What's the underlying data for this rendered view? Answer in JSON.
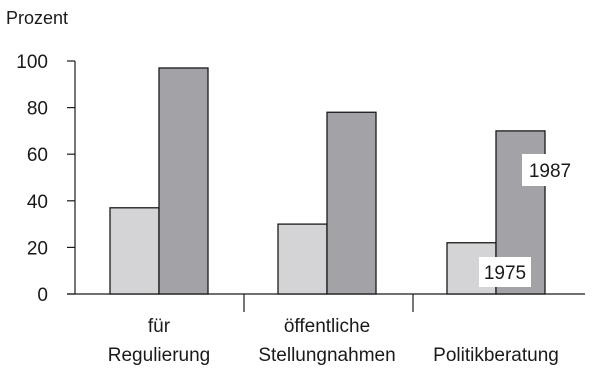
{
  "chart_data": {
    "type": "bar",
    "ylabel": "Prozent",
    "ylim": [
      0,
      100
    ],
    "yticks": [
      "0",
      "20",
      "40",
      "60",
      "80",
      "100"
    ],
    "categories": [
      [
        "für",
        "Regulierung"
      ],
      [
        "öffentliche",
        "Stellungnahmen"
      ],
      [
        "Politikberatung"
      ]
    ],
    "series": [
      {
        "name": "1975",
        "values": [
          37,
          30,
          22
        ],
        "color": "#d4d4d6"
      },
      {
        "name": "1987",
        "values": [
          97,
          78,
          70
        ],
        "color": "#a3a3a7"
      }
    ],
    "grid": false
  }
}
